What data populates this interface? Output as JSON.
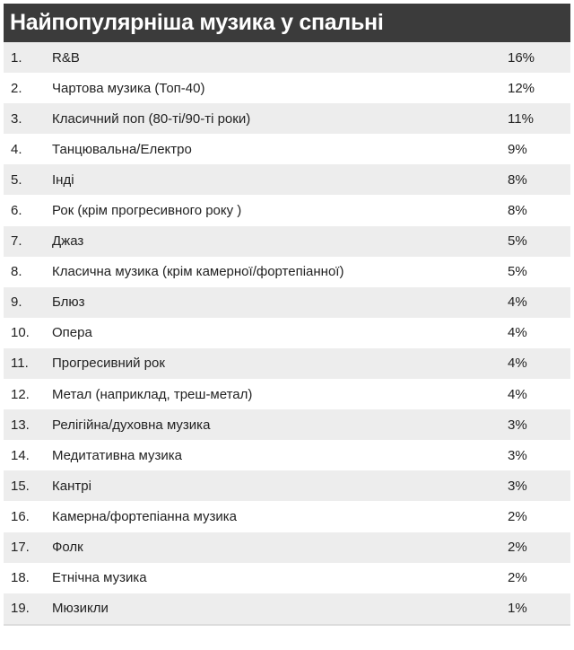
{
  "title": "Найпопулярніша музика у спальні",
  "rows": [
    {
      "rank": "1.",
      "genre": "R&B",
      "percent": "16%"
    },
    {
      "rank": "2.",
      "genre": "Чартова музика (Топ-40)",
      "percent": "12%"
    },
    {
      "rank": "3.",
      "genre": "Класичний поп (80-ті/90-ті роки)",
      "percent": "11%"
    },
    {
      "rank": "4.",
      "genre": "Танцювальна/Електро",
      "percent": "9%"
    },
    {
      "rank": "5.",
      "genre": "Інді",
      "percent": "8%"
    },
    {
      "rank": "6.",
      "genre": "Рок (крім прогресивного року )",
      "percent": "8%"
    },
    {
      "rank": "7.",
      "genre": "Джаз",
      "percent": "5%"
    },
    {
      "rank": "8.",
      "genre": "Класична музика (крім камерної/фортепіанної)",
      "percent": "5%"
    },
    {
      "rank": "9.",
      "genre": "Блюз",
      "percent": "4%"
    },
    {
      "rank": "10.",
      "genre": "Опера",
      "percent": "4%"
    },
    {
      "rank": "11.",
      "genre": "Прогресивний рок",
      "percent": "4%"
    },
    {
      "rank": "12.",
      "genre": "Метал (наприклад, треш-метал)",
      "percent": "4%"
    },
    {
      "rank": "13.",
      "genre": "Релігійна/духовна музика",
      "percent": "3%"
    },
    {
      "rank": "14.",
      "genre": "Медитативна музика",
      "percent": "3%"
    },
    {
      "rank": "15.",
      "genre": "Кантрі",
      "percent": "3%"
    },
    {
      "rank": "16.",
      "genre": "Камерна/фортепіанна музика",
      "percent": "2%"
    },
    {
      "rank": "17.",
      "genre": "Фолк",
      "percent": "2%"
    },
    {
      "rank": "18.",
      "genre": "Етнічна музика",
      "percent": "2%"
    },
    {
      "rank": "19.",
      "genre": "Мюзикли",
      "percent": "1%"
    }
  ],
  "colors": {
    "header_background": "#3b3b3b",
    "header_text": "#ffffff",
    "row_alt_background": "#ededed",
    "row_background": "#ffffff",
    "text": "#222222"
  }
}
